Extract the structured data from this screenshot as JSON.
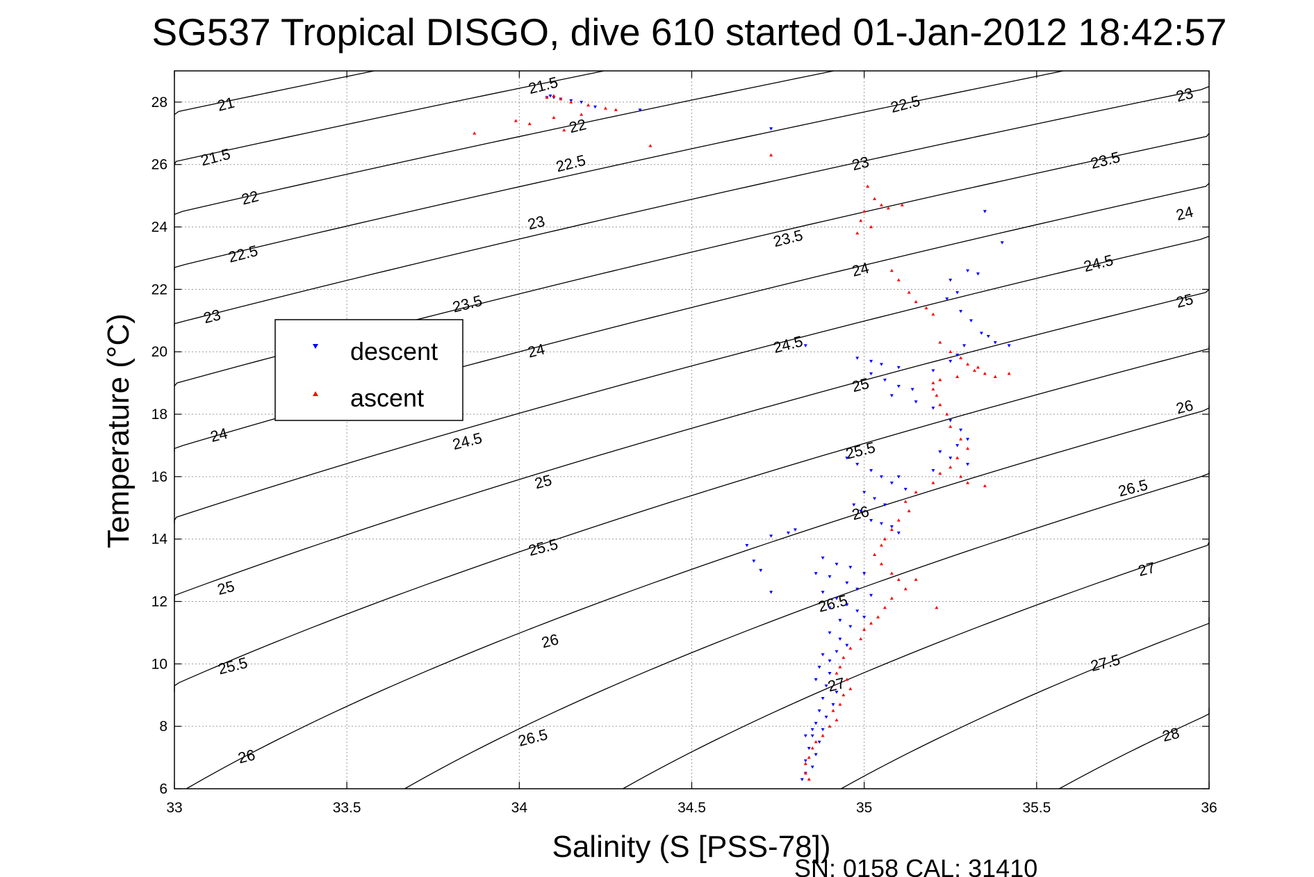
{
  "chart_data": {
    "type": "scatter",
    "title": "SG537 Tropical DISGO, dive 610 started 01-Jan-2012 18:42:57",
    "xlabel": "Salinity (S [PSS-78])",
    "ylabel": "Temperature (°C)",
    "xlim": [
      33,
      36
    ],
    "ylim": [
      6,
      29
    ],
    "xticks": [
      "33",
      "33.5",
      "34",
      "34.5",
      "35",
      "35.5",
      "36"
    ],
    "yticks": [
      "6",
      "8",
      "10",
      "12",
      "14",
      "16",
      "18",
      "20",
      "22",
      "24",
      "26",
      "28"
    ],
    "grid": true,
    "legend_placement": "center-left",
    "footer": "SN: 0158  CAL: 31410",
    "density_contours": {
      "levels": [
        21,
        21.5,
        22,
        22.5,
        23,
        23.5,
        24,
        24.5,
        25,
        25.5,
        26,
        26.5,
        27,
        27.5,
        28
      ],
      "labels": [
        {
          "text": "21",
          "s": 33.15,
          "t": 27.9
        },
        {
          "text": "21.5",
          "s": 33.12,
          "t": 26.2
        },
        {
          "text": "22",
          "s": 33.22,
          "t": 24.9
        },
        {
          "text": "22.5",
          "s": 33.2,
          "t": 23.1
        },
        {
          "text": "23",
          "s": 33.11,
          "t": 21.1
        },
        {
          "text": "24",
          "s": 33.13,
          "t": 17.3
        },
        {
          "text": "25",
          "s": 33.15,
          "t": 12.4
        },
        {
          "text": "25.5",
          "s": 33.17,
          "t": 9.9
        },
        {
          "text": "26",
          "s": 33.21,
          "t": 7.0
        },
        {
          "text": "21.5",
          "s": 34.07,
          "t": 28.5
        },
        {
          "text": "22",
          "s": 34.17,
          "t": 27.2
        },
        {
          "text": "22.5",
          "s": 34.15,
          "t": 26.0
        },
        {
          "text": "23",
          "s": 34.05,
          "t": 24.1
        },
        {
          "text": "23.5",
          "s": 33.85,
          "t": 21.5
        },
        {
          "text": "24",
          "s": 34.05,
          "t": 20.0
        },
        {
          "text": "24.5",
          "s": 33.85,
          "t": 17.1
        },
        {
          "text": "25",
          "s": 34.07,
          "t": 15.8
        },
        {
          "text": "25.5",
          "s": 34.07,
          "t": 13.7
        },
        {
          "text": "26",
          "s": 34.09,
          "t": 10.7
        },
        {
          "text": "26.5",
          "s": 34.04,
          "t": 7.6
        },
        {
          "text": "22.5",
          "s": 35.12,
          "t": 27.9
        },
        {
          "text": "23",
          "s": 34.99,
          "t": 26.0
        },
        {
          "text": "23.5",
          "s": 34.78,
          "t": 23.6
        },
        {
          "text": "24",
          "s": 34.99,
          "t": 22.6
        },
        {
          "text": "24.5",
          "s": 34.78,
          "t": 20.2
        },
        {
          "text": "25",
          "s": 34.99,
          "t": 18.9
        },
        {
          "text": "25.5",
          "s": 34.99,
          "t": 16.8
        },
        {
          "text": "26",
          "s": 34.99,
          "t": 14.8
        },
        {
          "text": "26.5",
          "s": 34.91,
          "t": 11.9
        },
        {
          "text": "27",
          "s": 34.92,
          "t": 9.3
        },
        {
          "text": "23",
          "s": 35.93,
          "t": 28.2
        },
        {
          "text": "23.5",
          "s": 35.7,
          "t": 26.1
        },
        {
          "text": "24",
          "s": 35.93,
          "t": 24.4
        },
        {
          "text": "24.5",
          "s": 35.68,
          "t": 22.8
        },
        {
          "text": "25",
          "s": 35.93,
          "t": 21.6
        },
        {
          "text": "26",
          "s": 35.93,
          "t": 18.2
        },
        {
          "text": "26.5",
          "s": 35.78,
          "t": 15.6
        },
        {
          "text": "27",
          "s": 35.82,
          "t": 13.0
        },
        {
          "text": "27.5",
          "s": 35.7,
          "t": 10.0
        },
        {
          "text": "28",
          "s": 35.89,
          "t": 7.7
        }
      ]
    },
    "series": [
      {
        "name": "descent",
        "color": "#0000ff",
        "marker": "triangle-down",
        "points": [
          [
            34.08,
            28.15
          ],
          [
            34.09,
            28.2
          ],
          [
            34.1,
            28.15
          ],
          [
            34.12,
            28.1
          ],
          [
            34.15,
            28.05
          ],
          [
            34.18,
            28.0
          ],
          [
            34.22,
            27.85
          ],
          [
            34.35,
            27.75
          ],
          [
            34.73,
            27.15
          ],
          [
            35.35,
            24.5
          ],
          [
            35.4,
            23.5
          ],
          [
            35.3,
            22.6
          ],
          [
            35.33,
            22.5
          ],
          [
            35.25,
            22.3
          ],
          [
            35.27,
            21.9
          ],
          [
            35.24,
            21.7
          ],
          [
            35.28,
            21.3
          ],
          [
            35.31,
            21.0
          ],
          [
            35.34,
            20.6
          ],
          [
            35.38,
            20.3
          ],
          [
            35.42,
            20.2
          ],
          [
            35.36,
            20.5
          ],
          [
            35.29,
            20.2
          ],
          [
            35.27,
            19.9
          ],
          [
            35.2,
            19.4
          ],
          [
            35.25,
            19.7
          ],
          [
            34.83,
            20.2
          ],
          [
            34.98,
            19.8
          ],
          [
            35.02,
            19.7
          ],
          [
            35.05,
            19.6
          ],
          [
            35.1,
            19.5
          ],
          [
            35.02,
            19.3
          ],
          [
            35.06,
            19.1
          ],
          [
            35.1,
            18.9
          ],
          [
            35.14,
            18.8
          ],
          [
            35.08,
            18.6
          ],
          [
            35.15,
            18.4
          ],
          [
            35.2,
            18.2
          ],
          [
            35.25,
            17.8
          ],
          [
            35.28,
            17.5
          ],
          [
            35.3,
            17.2
          ],
          [
            35.27,
            17.0
          ],
          [
            35.22,
            16.8
          ],
          [
            35.25,
            16.6
          ],
          [
            35.3,
            16.4
          ],
          [
            35.2,
            16.2
          ],
          [
            35.1,
            16.0
          ],
          [
            34.95,
            16.6
          ],
          [
            34.98,
            16.4
          ],
          [
            35.02,
            16.2
          ],
          [
            35.05,
            16.0
          ],
          [
            35.08,
            15.8
          ],
          [
            35.12,
            15.6
          ],
          [
            35.0,
            15.5
          ],
          [
            35.03,
            15.3
          ],
          [
            35.06,
            15.1
          ],
          [
            34.97,
            15.1
          ],
          [
            34.99,
            14.9
          ],
          [
            35.02,
            14.6
          ],
          [
            35.08,
            14.4
          ],
          [
            35.1,
            14.2
          ],
          [
            35.05,
            14.5
          ],
          [
            34.78,
            14.2
          ],
          [
            34.8,
            14.3
          ],
          [
            34.73,
            14.1
          ],
          [
            34.66,
            13.8
          ],
          [
            34.68,
            13.3
          ],
          [
            34.7,
            13.0
          ],
          [
            34.73,
            12.3
          ],
          [
            34.88,
            13.4
          ],
          [
            34.92,
            13.2
          ],
          [
            34.96,
            13.1
          ],
          [
            35.0,
            12.9
          ],
          [
            34.86,
            12.9
          ],
          [
            34.9,
            12.8
          ],
          [
            34.95,
            12.6
          ],
          [
            34.98,
            12.4
          ],
          [
            35.02,
            12.2
          ],
          [
            34.88,
            12.3
          ],
          [
            34.92,
            12.1
          ],
          [
            34.95,
            11.9
          ],
          [
            34.98,
            11.7
          ],
          [
            35.0,
            11.5
          ],
          [
            34.9,
            11.8
          ],
          [
            34.93,
            11.4
          ],
          [
            34.96,
            11.2
          ],
          [
            34.9,
            11.0
          ],
          [
            34.93,
            10.8
          ],
          [
            34.95,
            10.6
          ],
          [
            34.92,
            10.4
          ],
          [
            34.88,
            10.3
          ],
          [
            34.9,
            10.1
          ],
          [
            34.87,
            9.9
          ],
          [
            34.9,
            9.7
          ],
          [
            34.86,
            9.5
          ],
          [
            34.89,
            9.3
          ],
          [
            34.92,
            9.1
          ],
          [
            34.88,
            8.9
          ],
          [
            34.91,
            8.7
          ],
          [
            34.87,
            8.5
          ],
          [
            34.89,
            8.3
          ],
          [
            34.86,
            8.1
          ],
          [
            34.88,
            7.9
          ],
          [
            34.85,
            7.7
          ],
          [
            34.87,
            7.5
          ],
          [
            34.84,
            7.3
          ],
          [
            34.86,
            7.1
          ],
          [
            34.83,
            6.9
          ],
          [
            34.85,
            6.7
          ],
          [
            34.83,
            6.5
          ],
          [
            34.82,
            6.3
          ],
          [
            34.85,
            7.9
          ],
          [
            34.83,
            7.7
          ]
        ]
      },
      {
        "name": "ascent",
        "color": "#ff0000",
        "marker": "triangle-up",
        "points": [
          [
            34.08,
            28.15
          ],
          [
            34.1,
            28.2
          ],
          [
            34.12,
            28.1
          ],
          [
            34.15,
            28.0
          ],
          [
            34.2,
            27.9
          ],
          [
            34.25,
            27.8
          ],
          [
            34.28,
            27.75
          ],
          [
            34.18,
            27.6
          ],
          [
            34.1,
            27.5
          ],
          [
            34.03,
            27.3
          ],
          [
            34.13,
            27.1
          ],
          [
            33.87,
            27.0
          ],
          [
            33.99,
            27.4
          ],
          [
            34.38,
            26.6
          ],
          [
            34.73,
            26.3
          ],
          [
            35.01,
            25.3
          ],
          [
            35.03,
            24.9
          ],
          [
            35.0,
            24.5
          ],
          [
            34.99,
            24.2
          ],
          [
            35.02,
            24.0
          ],
          [
            34.98,
            23.8
          ],
          [
            35.05,
            24.7
          ],
          [
            35.07,
            24.6
          ],
          [
            35.11,
            24.7
          ],
          [
            35.08,
            22.6
          ],
          [
            35.1,
            22.3
          ],
          [
            35.13,
            21.9
          ],
          [
            35.15,
            21.6
          ],
          [
            35.18,
            21.4
          ],
          [
            35.2,
            21.2
          ],
          [
            35.22,
            20.3
          ],
          [
            35.25,
            20.0
          ],
          [
            35.28,
            19.8
          ],
          [
            35.3,
            19.6
          ],
          [
            35.32,
            19.4
          ],
          [
            35.35,
            19.3
          ],
          [
            35.38,
            19.2
          ],
          [
            35.42,
            19.3
          ],
          [
            35.33,
            19.5
          ],
          [
            35.27,
            19.2
          ],
          [
            35.22,
            19.1
          ],
          [
            35.2,
            19.0
          ],
          [
            35.2,
            18.8
          ],
          [
            35.21,
            18.6
          ],
          [
            35.22,
            18.3
          ],
          [
            35.24,
            18.0
          ],
          [
            35.25,
            17.6
          ],
          [
            35.28,
            17.2
          ],
          [
            35.3,
            16.9
          ],
          [
            35.27,
            16.6
          ],
          [
            35.25,
            16.3
          ],
          [
            35.22,
            16.1
          ],
          [
            35.28,
            16.0
          ],
          [
            35.3,
            15.8
          ],
          [
            35.35,
            15.7
          ],
          [
            35.2,
            15.8
          ],
          [
            35.15,
            15.5
          ],
          [
            35.12,
            15.2
          ],
          [
            35.13,
            14.9
          ],
          [
            35.1,
            14.6
          ],
          [
            35.08,
            14.3
          ],
          [
            35.06,
            14.0
          ],
          [
            35.05,
            13.8
          ],
          [
            35.03,
            13.5
          ],
          [
            35.05,
            13.2
          ],
          [
            35.08,
            12.9
          ],
          [
            35.1,
            12.7
          ],
          [
            35.15,
            12.7
          ],
          [
            35.12,
            12.4
          ],
          [
            35.08,
            12.1
          ],
          [
            35.06,
            11.8
          ],
          [
            35.04,
            11.5
          ],
          [
            35.02,
            11.3
          ],
          [
            35.0,
            11.1
          ],
          [
            34.99,
            10.8
          ],
          [
            34.96,
            10.5
          ],
          [
            34.94,
            10.2
          ],
          [
            34.93,
            9.9
          ],
          [
            34.92,
            9.7
          ],
          [
            34.95,
            9.5
          ],
          [
            34.96,
            9.2
          ],
          [
            34.94,
            9.0
          ],
          [
            34.93,
            8.7
          ],
          [
            34.91,
            8.5
          ],
          [
            34.92,
            8.2
          ],
          [
            34.9,
            8.0
          ],
          [
            34.88,
            7.7
          ],
          [
            34.86,
            7.5
          ],
          [
            34.85,
            7.3
          ],
          [
            34.84,
            7.0
          ],
          [
            34.83,
            6.8
          ],
          [
            34.83,
            6.5
          ],
          [
            34.84,
            6.3
          ],
          [
            35.21,
            11.8
          ]
        ]
      }
    ]
  }
}
